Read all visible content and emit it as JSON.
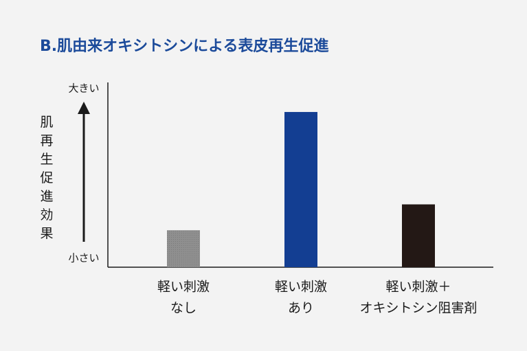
{
  "chart_data": {
    "type": "bar",
    "title": "B.肌由来オキシトシンによる表皮再生促進",
    "y_label": "肌再生促進効果",
    "y_high_label": "大きい",
    "y_low_label": "小さい",
    "categories": [
      [
        "軽い刺激",
        "なし"
      ],
      [
        "軽い刺激",
        "あり"
      ],
      [
        "軽い刺激＋",
        "オキシトシン阻害剤"
      ]
    ],
    "values": [
      20,
      84,
      34
    ],
    "colors": [
      "#8a8a8a",
      "#133e92",
      "#231815"
    ],
    "ylim": [
      0,
      100
    ]
  }
}
